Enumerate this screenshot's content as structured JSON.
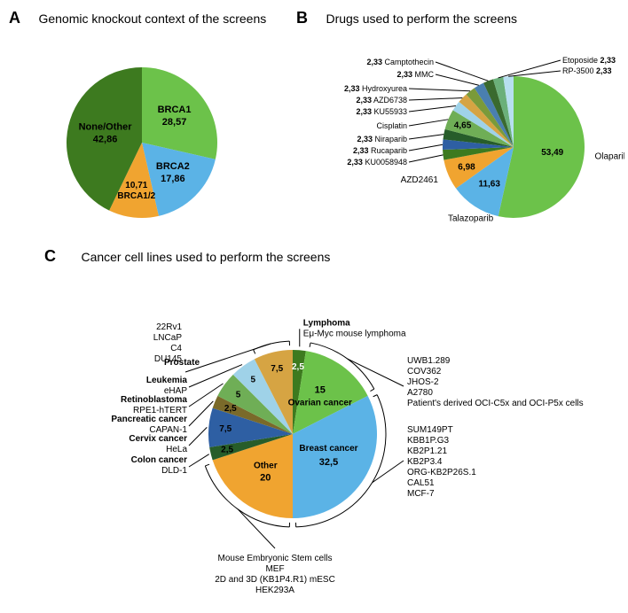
{
  "panelA": {
    "label": "A",
    "title": "Genomic knockout context of the screens",
    "type": "pie",
    "background_color": "#ffffff",
    "slices": [
      {
        "name": "BRCA1",
        "value": 28.57,
        "label": "28,57",
        "color": "#6cc24a"
      },
      {
        "name": "BRCA2",
        "value": 17.86,
        "label": "17,86",
        "color": "#5bb3e6"
      },
      {
        "name": "BRCA1/2",
        "value": 10.71,
        "label": "10,71",
        "color": "#f0a430"
      },
      {
        "name": "None/Other",
        "value": 42.86,
        "label": "42,86",
        "color": "#3d7a1f"
      }
    ]
  },
  "panelB": {
    "label": "B",
    "title": "Drugs used to perform the screens",
    "type": "pie",
    "background_color": "#ffffff",
    "slices": [
      {
        "name": "Olaparib",
        "value": 53.49,
        "label": "53,49",
        "color": "#6cc24a"
      },
      {
        "name": "Talazoparib",
        "value": 11.63,
        "label": "11,63",
        "color": "#5bb3e6"
      },
      {
        "name": "AZD2461",
        "value": 6.98,
        "label": "6,98",
        "color": "#f0a430"
      },
      {
        "name": "KU0058948",
        "value": 2.33,
        "label": "2,33",
        "color": "#3d7a1f"
      },
      {
        "name": "Rucaparib",
        "value": 2.33,
        "label": "2,33",
        "color": "#2e5fa3"
      },
      {
        "name": "Niraparib",
        "value": 2.33,
        "label": "2,33",
        "color": "#275d2a"
      },
      {
        "name": "Cisplatin",
        "value": 4.65,
        "label": "4,65",
        "color": "#6fae56"
      },
      {
        "name": "KU55933",
        "value": 2.33,
        "label": "2,33",
        "color": "#9fd2e8"
      },
      {
        "name": "AZD6738",
        "value": 2.33,
        "label": "2,33",
        "color": "#d6a443"
      },
      {
        "name": "Hydroxyurea",
        "value": 2.33,
        "label": "2,33",
        "color": "#7a9a3a"
      },
      {
        "name": "MMC",
        "value": 2.33,
        "label": "2,33",
        "color": "#4a7fb0"
      },
      {
        "name": "Camptothecin",
        "value": 2.33,
        "label": "2,33",
        "color": "#3a6a2f"
      },
      {
        "name": "Etoposide",
        "value": 2.33,
        "label": "2,33",
        "color": "#6bb07a"
      },
      {
        "name": "RP-3500",
        "value": 2.33,
        "label": "2,33",
        "color": "#b7dff0"
      }
    ]
  },
  "panelC": {
    "label": "C",
    "title": "Cancer cell lines used to perform the screens",
    "type": "pie",
    "background_color": "#ffffff",
    "slices": [
      {
        "name": "Lymphoma",
        "value": 2.5,
        "label": "2,5",
        "color": "#3d7a1f",
        "sub": [
          "Eμ-Myc mouse lymphoma"
        ]
      },
      {
        "name": "Ovarian cancer",
        "value": 15,
        "label": "15",
        "color": "#6cc24a",
        "sub": [
          "UWB1.289",
          "COV362",
          "JHOS-2",
          "A2780",
          "Patient's derived OCI-C5x and OCI-P5x cells"
        ]
      },
      {
        "name": "Breast cancer",
        "value": 32.5,
        "label": "32,5",
        "color": "#5bb3e6",
        "sub": [
          "SUM149PT",
          "KBB1P.G3",
          "KB2P1.21",
          "KB2P3.4",
          "ORG-KB2P26S.1",
          "CAL51",
          "MCF-7"
        ]
      },
      {
        "name": "Other",
        "value": 20,
        "label": "20",
        "color": "#f0a430",
        "sub": [
          "Mouse Embryonic Stem cells",
          "MEF",
          "2D and 3D (KB1P4.R1) mESC",
          "HEK293A"
        ]
      },
      {
        "name": "Colon cancer",
        "value": 2.5,
        "label": "2,5",
        "color": "#275d2a",
        "sub": [
          "DLD-1"
        ]
      },
      {
        "name": "Cervix cancer",
        "value": 7.5,
        "label": "7,5",
        "color": "#2e5fa3",
        "sub": [
          "HeLa"
        ]
      },
      {
        "name": "Pancreatic cancer",
        "value": 2.5,
        "label": "2,5",
        "color": "#7a6a2a",
        "sub": [
          "CAPAN-1"
        ]
      },
      {
        "name": "Retinoblastoma",
        "value": 5,
        "label": "5",
        "color": "#6fae56",
        "sub": [
          "RPE1-hTERT"
        ]
      },
      {
        "name": "Leukemia",
        "value": 5,
        "label": "5",
        "color": "#9fd2e8",
        "sub": [
          "eHAP"
        ]
      },
      {
        "name": "Prostate",
        "value": 7.5,
        "label": "7,5",
        "color": "#d6a443",
        "sub": [
          "22Rv1",
          "LNCaP",
          "C4",
          "DU145"
        ]
      }
    ]
  }
}
